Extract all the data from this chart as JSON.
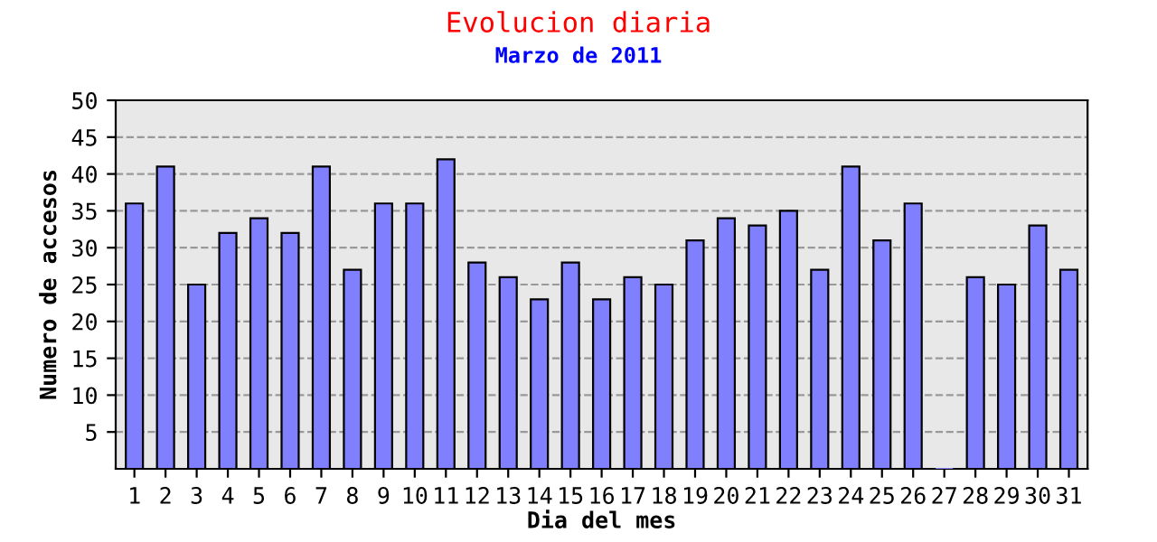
{
  "chart_data": {
    "type": "bar",
    "title": "Evolucion diaria",
    "subtitle": "Marzo de 2011",
    "xlabel": "Dia del mes",
    "ylabel": "Numero de accesos",
    "categories": [
      "1",
      "2",
      "3",
      "4",
      "5",
      "6",
      "7",
      "8",
      "9",
      "10",
      "11",
      "12",
      "13",
      "14",
      "15",
      "16",
      "17",
      "18",
      "19",
      "20",
      "21",
      "22",
      "23",
      "24",
      "25",
      "26",
      "27",
      "28",
      "29",
      "30",
      "31"
    ],
    "series": [
      {
        "color": "#8080ff",
        "values": [
          36,
          41,
          25,
          32,
          34,
          32,
          41,
          27,
          36,
          36,
          42,
          28,
          26,
          23,
          28,
          23,
          26,
          25,
          31,
          34,
          33,
          35,
          27,
          41,
          31,
          36,
          0,
          26,
          25,
          33,
          27
        ]
      }
    ],
    "ylim": [
      0,
      50
    ],
    "yticks": [
      5,
      10,
      15,
      20,
      25,
      30,
      35,
      40,
      45,
      50
    ],
    "grid": "y",
    "legend": false
  }
}
